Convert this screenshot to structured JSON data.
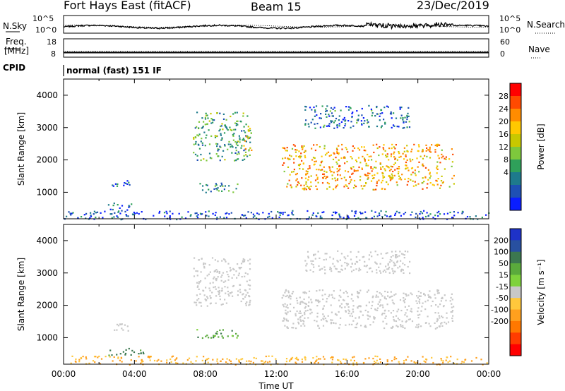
{
  "header": {
    "station": "Fort Hays East (fitACF)",
    "beam": "Beam 15",
    "date": "23/Dec/2019"
  },
  "noise_panel": {
    "left_label": "N.Sky",
    "left_ticks": [
      "10^5",
      "10^0"
    ],
    "right_ticks": [
      "10^5",
      "10^0"
    ],
    "right_label": "N.Search"
  },
  "freq_panel": {
    "label_line1": "Freq.",
    "label_line2": "[MHz]",
    "left_ticks": [
      "18",
      "8"
    ],
    "right_ticks": [
      "60",
      "0"
    ],
    "right_label": "Nave",
    "cpid_label": "CPID",
    "cpid_text": "normal (fast) 151 IF",
    "freq_value": 10.5,
    "nave_value": 22
  },
  "chart_data": [
    {
      "type": "heatmap",
      "name": "power",
      "ylabel": "Slant Range [km]",
      "y_ticks": [
        "4000",
        "3000",
        "2000",
        "1000"
      ],
      "ylim": [
        180,
        4500
      ],
      "x_ticks": [
        "00:00",
        "04:00",
        "08:00",
        "12:00",
        "16:00",
        "20:00",
        "00:00"
      ],
      "xlim": [
        0,
        24
      ],
      "colorbar": {
        "label": "Power [dB]",
        "ticks": [
          "28",
          "24",
          "20",
          "16",
          "12",
          "8",
          "4"
        ],
        "colors": [
          "#ff0000",
          "#ff4a00",
          "#ff8c00",
          "#ffc800",
          "#c8c800",
          "#7ec83c",
          "#2fa05a",
          "#1e7a8c",
          "#1e50b4",
          "#0a1eff"
        ]
      },
      "regions": [
        {
          "t0": 2.6,
          "t1": 3.8,
          "r0": 1200,
          "r1": 1450,
          "level": 8
        },
        {
          "t0": 2.5,
          "t1": 4.0,
          "r0": 400,
          "r1": 700,
          "level": 6
        },
        {
          "t0": 7.4,
          "t1": 9.8,
          "r0": 1000,
          "r1": 1300,
          "level": 10
        },
        {
          "t0": 7.3,
          "t1": 10.5,
          "r0": 2000,
          "r1": 3500,
          "level": 12
        },
        {
          "t0": 10.0,
          "t1": 10.6,
          "r0": 2200,
          "r1": 3000,
          "level": 18
        },
        {
          "t0": 12.3,
          "t1": 22.0,
          "r0": 1100,
          "r1": 2500,
          "level": 22
        },
        {
          "t0": 13.5,
          "t1": 19.5,
          "r0": 3000,
          "r1": 3700,
          "level": 8
        },
        {
          "t0": 0.0,
          "t1": 24.0,
          "r0": 180,
          "r1": 450,
          "level": 6
        }
      ]
    },
    {
      "type": "heatmap",
      "name": "velocity",
      "ylabel": "Slant Range [km]",
      "y_ticks": [
        "4000",
        "3000",
        "2000",
        "1000"
      ],
      "ylim": [
        180,
        4500
      ],
      "x_ticks": [
        "00:00",
        "04:00",
        "08:00",
        "12:00",
        "16:00",
        "20:00",
        "00:00"
      ],
      "xlim": [
        0,
        24
      ],
      "xlabel": "Time UT",
      "colorbar": {
        "label": "Velocity [m s⁻¹]",
        "ticks": [
          "200",
          "100",
          "50",
          "15",
          "-15",
          "-50",
          "-100",
          "-200"
        ],
        "colors": [
          "#1e32c8",
          "#2850a0",
          "#3c7850",
          "#5aaa3c",
          "#7ed23c",
          "#c8c8c8",
          "#ffc83c",
          "#ffa01e",
          "#ff7800",
          "#ff3c00",
          "#ff0000"
        ]
      },
      "regions": [
        {
          "t0": 2.6,
          "t1": 3.8,
          "r0": 1200,
          "r1": 1450,
          "vel": 0
        },
        {
          "t0": 2.5,
          "t1": 4.5,
          "r0": 450,
          "r1": 700,
          "vel": 60
        },
        {
          "t0": 7.4,
          "t1": 9.8,
          "r0": 1000,
          "r1": 1300,
          "vel": 40
        },
        {
          "t0": 7.3,
          "t1": 10.5,
          "r0": 2000,
          "r1": 3500,
          "vel": 0
        },
        {
          "t0": 12.3,
          "t1": 22.0,
          "r0": 1300,
          "r1": 2500,
          "vel": 0
        },
        {
          "t0": 13.5,
          "t1": 19.5,
          "r0": 3000,
          "r1": 3700,
          "vel": 0
        },
        {
          "t0": 0.0,
          "t1": 24.0,
          "r0": 180,
          "r1": 450,
          "vel": -30
        }
      ]
    }
  ]
}
